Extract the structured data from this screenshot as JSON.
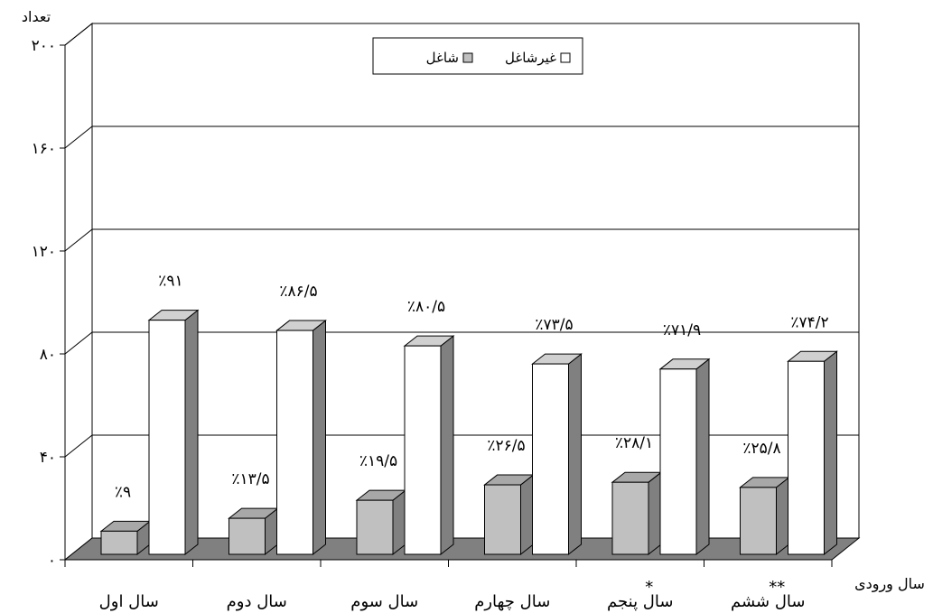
{
  "chart_data": {
    "type": "bar",
    "style": "3d-clustered",
    "ylabel": "تعداد",
    "xlabel": "سال ورودی",
    "ylim": [
      0,
      200
    ],
    "yticks": [
      {
        "value": 0,
        "label": "۰"
      },
      {
        "value": 40,
        "label": "۴۰"
      },
      {
        "value": 80,
        "label": "۸۰"
      },
      {
        "value": 120,
        "label": "۱۲۰"
      },
      {
        "value": 160,
        "label": "۱۶۰"
      },
      {
        "value": 200,
        "label": "۲۰۰"
      }
    ],
    "grid": true,
    "legend_position": "top-center",
    "categories": [
      "سال اول",
      "سال دوم",
      "سال سوم",
      "سال چهارم",
      "سال پنجم",
      "سال ششم"
    ],
    "category_marks": [
      "",
      "",
      "",
      "",
      "*",
      "**"
    ],
    "series": [
      {
        "name": "شاغل",
        "color": "#c0c0c0",
        "values": [
          9,
          14,
          21,
          27,
          28,
          26
        ],
        "labels": [
          "٪۹",
          "٪۱۳/۵",
          "٪۱۹/۵",
          "٪۲۶/۵",
          "٪۲۸/۱",
          "٪۲۵/۸"
        ]
      },
      {
        "name": "غیرشاغل",
        "color": "#ffffff",
        "values": [
          91,
          87,
          81,
          74,
          72,
          75
        ],
        "labels": [
          "٪۹۱",
          "٪۸۶/۵",
          "٪۸۰/۵",
          "٪۷۳/۵",
          "٪۷۱/۹",
          "٪۷۴/۲"
        ]
      }
    ],
    "colors": {
      "floor": "#808080",
      "bar_side": "#808080",
      "bar_top_shaded": "#a8a8a8",
      "bar_top_white": "#d0d0d0"
    }
  }
}
